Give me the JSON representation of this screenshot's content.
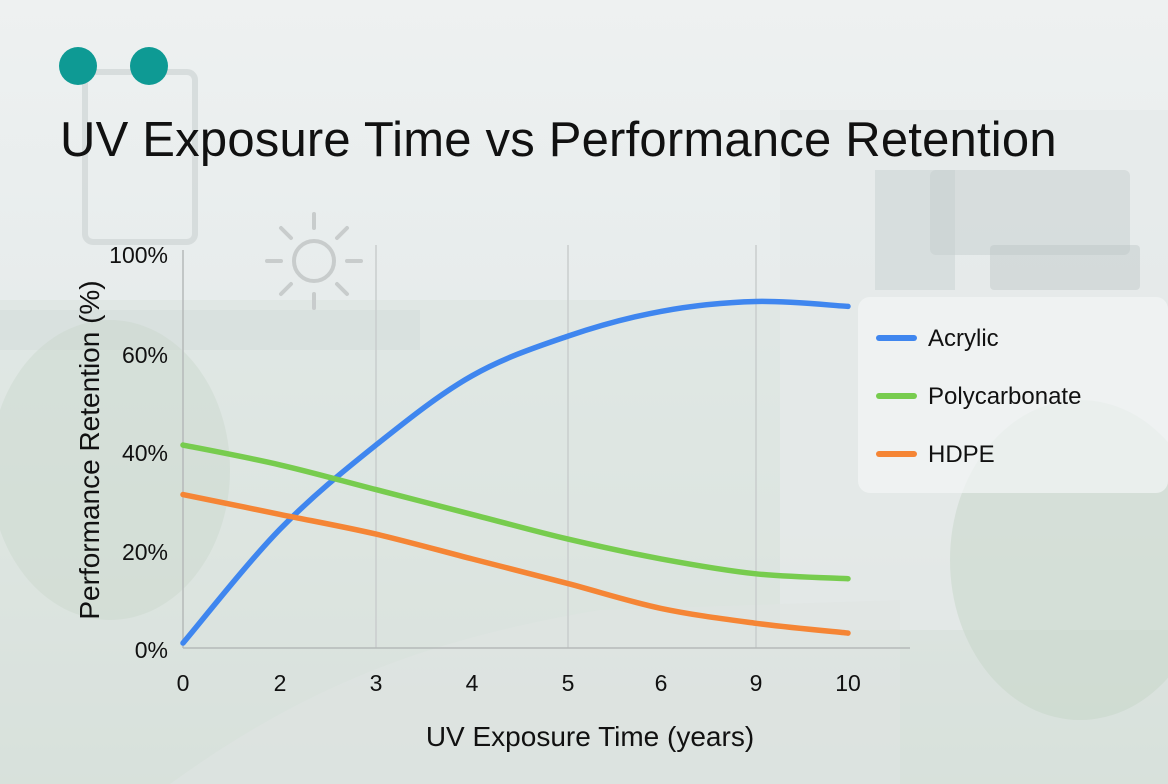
{
  "title": "UV Exposure Time vs Performance Retention",
  "colors": {
    "accent_dots": "#0e9a94",
    "acrylic": "#3f86ef",
    "polycarbonate": "#77cc4e",
    "hdpe": "#f58535"
  },
  "icons": [
    "sun-icon"
  ],
  "chart_data": {
    "type": "line",
    "title": "UV Exposure Time vs Performance Retention",
    "xlabel": "UV Exposure Time (years)",
    "ylabel": "Performance Retention (%)",
    "x_ticks": [
      "0",
      "2",
      "3",
      "4",
      "5",
      "6",
      "9",
      "10"
    ],
    "y_ticks": [
      "0%",
      "20%",
      "40%",
      "60%",
      "100%"
    ],
    "ylim": [
      0,
      100
    ],
    "grid": "vertical lines at 3, 5, 9",
    "legend_position": "right",
    "series": [
      {
        "name": "Acrylic",
        "color": "#3f86ef",
        "x": [
          "0",
          "2",
          "3",
          "4",
          "5",
          "6",
          "9",
          "10"
        ],
        "values": [
          1,
          24,
          41,
          55,
          63,
          68,
          70,
          69
        ]
      },
      {
        "name": "Polycarbonate",
        "color": "#77cc4e",
        "x": [
          "0",
          "2",
          "3",
          "4",
          "5",
          "6",
          "9",
          "10"
        ],
        "values": [
          41,
          37,
          32,
          27,
          22,
          18,
          15,
          14
        ]
      },
      {
        "name": "HDPE",
        "color": "#f58535",
        "x": [
          "0",
          "2",
          "3",
          "4",
          "5",
          "6",
          "9",
          "10"
        ],
        "values": [
          31,
          27,
          23,
          18,
          13,
          8,
          5,
          3
        ]
      }
    ]
  }
}
